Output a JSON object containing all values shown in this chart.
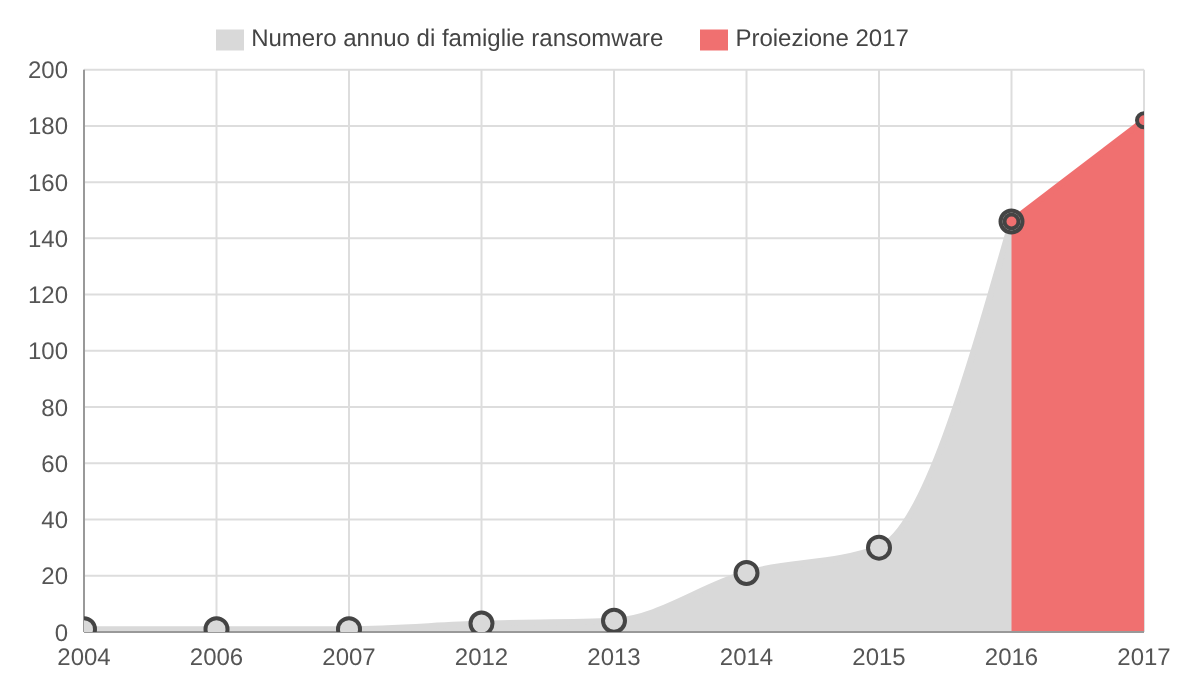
{
  "chart_data": {
    "type": "area",
    "categories": [
      "2004",
      "2006",
      "2007",
      "2012",
      "2013",
      "2014",
      "2015",
      "2016",
      "2017"
    ],
    "series": [
      {
        "name": "Numero annuo di famiglie ransomware",
        "color": "#d9d9d9",
        "values": [
          1,
          1,
          1,
          3,
          4,
          21,
          30,
          146,
          null
        ]
      },
      {
        "name": "Proiezione 2017",
        "color": "#f07070",
        "values": [
          null,
          null,
          null,
          null,
          null,
          null,
          null,
          146,
          182
        ]
      }
    ],
    "ylim": [
      0,
      200
    ],
    "yticks": [
      0,
      20,
      40,
      60,
      80,
      100,
      120,
      140,
      160,
      180,
      200
    ],
    "grid": true,
    "legend": "top",
    "marker": "circle"
  }
}
